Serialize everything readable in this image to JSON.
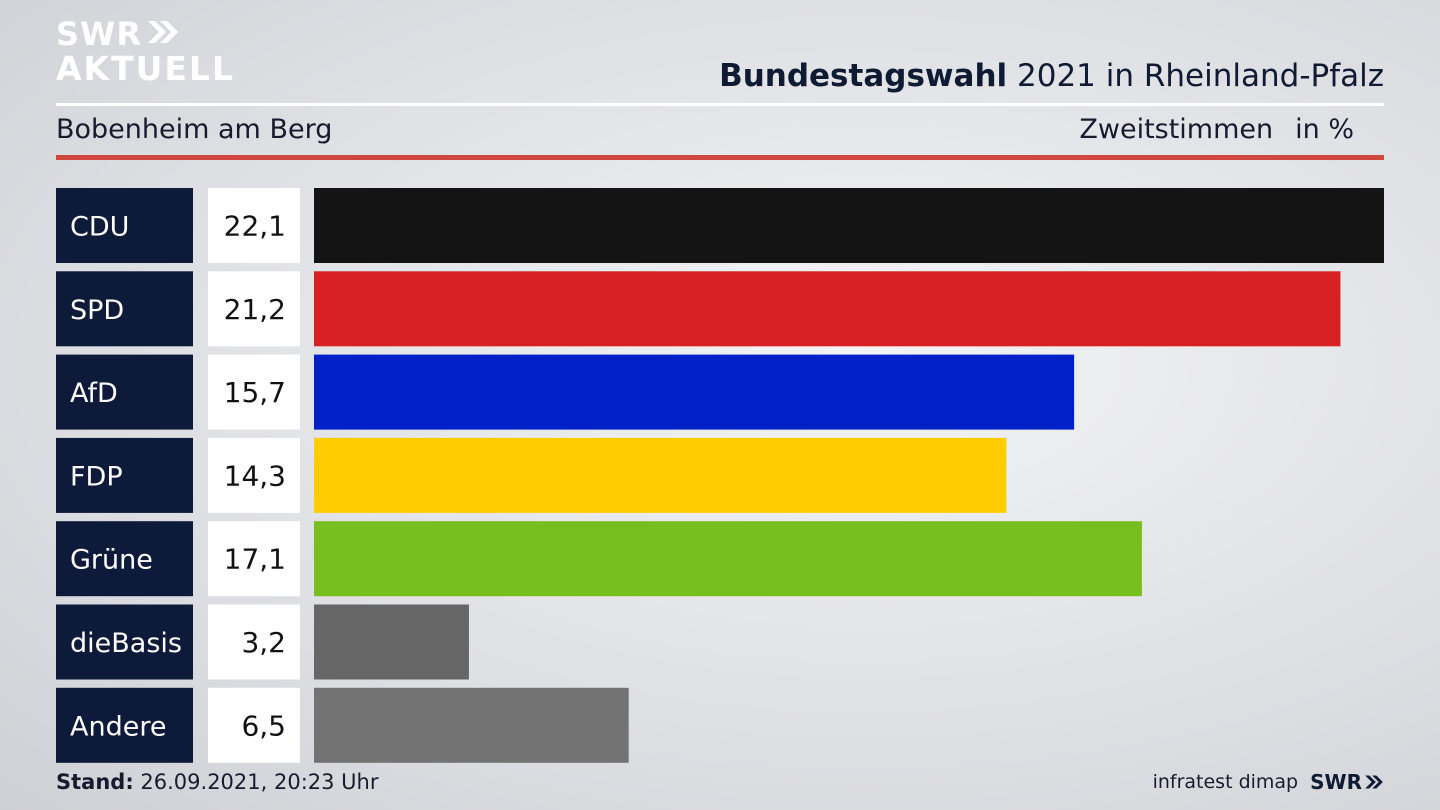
{
  "header": {
    "logo_line1": "SWR",
    "logo_line2": "AKTUELL",
    "title_bold": "Bundestagswahl",
    "title_rest": " 2021 in Rheinland-Pfalz",
    "location": "Bobenheim am Berg",
    "measure": "Zweitstimmen",
    "unit": "in %"
  },
  "chart_data": {
    "type": "bar",
    "orientation": "horizontal",
    "categories": [
      "CDU",
      "SPD",
      "AfD",
      "FDP",
      "Grüne",
      "dieBasis",
      "Andere"
    ],
    "values": [
      22.1,
      21.2,
      15.7,
      14.3,
      17.1,
      3.2,
      6.5
    ],
    "value_labels": [
      "22,1",
      "21,2",
      "15,7",
      "14,3",
      "17,1",
      "3,2",
      "6,5"
    ],
    "colors": [
      "#141414",
      "#d62021",
      "#0021c8",
      "#ffcc00",
      "#78be1e",
      "#666666",
      "#737373"
    ],
    "xlim": [
      0,
      22.1
    ],
    "grid": false,
    "legend": "none"
  },
  "footer": {
    "stand_label": "Stand:",
    "stand_value": " 26.09.2021, 20:23 Uhr",
    "source": "infratest dimap",
    "brand": "SWR"
  },
  "colors": {
    "navy": "#0e1a3a",
    "accent_red": "#d0473e"
  }
}
